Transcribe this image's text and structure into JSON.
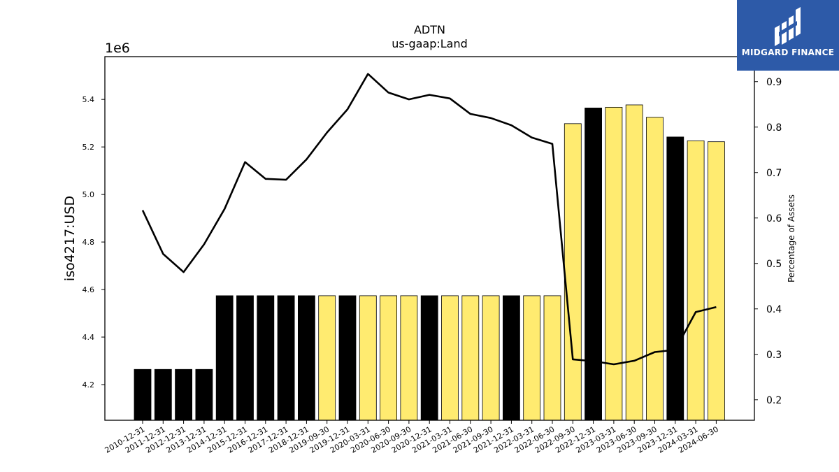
{
  "logo": {
    "text": "MIDGARD FINANCE"
  },
  "chart_data": {
    "type": "bar",
    "title": "ADTN",
    "subtitle": "us-gaap:Land",
    "ylabel": "iso4217:USD",
    "y2label": "Percentage of Assets",
    "y_offset_label": "1e6",
    "ylim": [
      4.05,
      5.58
    ],
    "y2lim": [
      0.155,
      0.955
    ],
    "yticks": [
      "4.2",
      "4.4",
      "4.6",
      "4.8",
      "5.0",
      "5.2",
      "5.4"
    ],
    "y2ticks": [
      "0.2",
      "0.3",
      "0.4",
      "0.5",
      "0.6",
      "0.7",
      "0.8",
      "0.9"
    ],
    "categories": [
      "2010-12-31",
      "2011-12-31",
      "2012-12-31",
      "2013-12-31",
      "2014-12-31",
      "2015-12-31",
      "2016-12-31",
      "2017-12-31",
      "2018-12-31",
      "2019-09-30",
      "2019-12-31",
      "2020-03-31",
      "2020-06-30",
      "2020-09-30",
      "2020-12-31",
      "2021-03-31",
      "2021-06-30",
      "2021-09-30",
      "2021-12-31",
      "2022-03-31",
      "2022-06-30",
      "2022-09-30",
      "2022-12-31",
      "2023-03-31",
      "2023-06-30",
      "2023-09-30",
      "2023-12-31",
      "2024-03-31",
      "2024-06-30"
    ],
    "bar_colors": {
      "annual": "#000000",
      "quarterly": "#ffeb70"
    },
    "series": [
      {
        "type": "bar",
        "values": [
          4.264,
          4.264,
          4.264,
          4.264,
          4.574,
          4.574,
          4.574,
          4.574,
          4.574,
          4.574,
          4.574,
          4.574,
          4.574,
          4.574,
          4.574,
          4.574,
          4.574,
          4.574,
          4.574,
          4.574,
          4.574,
          5.298,
          5.364,
          5.367,
          5.377,
          5.325,
          5.242,
          5.226,
          5.222
        ],
        "period": [
          "annual",
          "annual",
          "annual",
          "annual",
          "annual",
          "annual",
          "annual",
          "annual",
          "annual",
          "quarterly",
          "annual",
          "quarterly",
          "quarterly",
          "quarterly",
          "annual",
          "quarterly",
          "quarterly",
          "quarterly",
          "annual",
          "quarterly",
          "quarterly",
          "quarterly",
          "annual",
          "quarterly",
          "quarterly",
          "quarterly",
          "annual",
          "quarterly",
          "quarterly"
        ]
      },
      {
        "type": "line",
        "axis": "right",
        "color": "#000000",
        "values": [
          0.617,
          0.521,
          0.481,
          0.542,
          0.62,
          0.723,
          0.686,
          0.684,
          0.729,
          0.788,
          0.839,
          0.917,
          0.876,
          0.861,
          0.871,
          0.863,
          0.829,
          0.82,
          0.804,
          0.777,
          0.763,
          0.289,
          0.285,
          0.278,
          0.286,
          0.305,
          0.31,
          0.393,
          0.404
        ]
      }
    ]
  }
}
